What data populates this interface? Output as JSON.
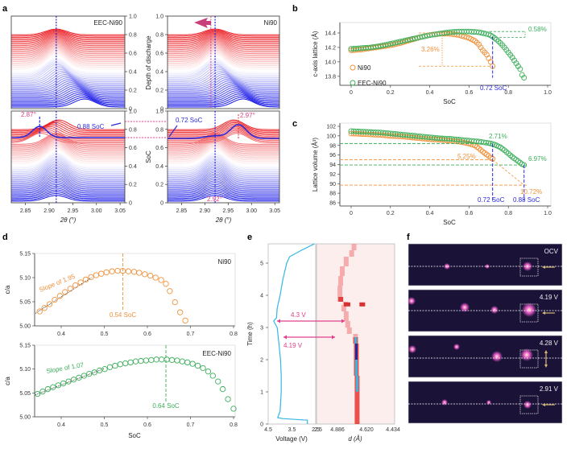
{
  "panel_labels": {
    "a": "a",
    "b": "b",
    "c": "c",
    "d": "d",
    "e": "e",
    "f": "f"
  },
  "colors": {
    "orange": "#f0913a",
    "green": "#3cae5a",
    "blue": "#2a2ad8",
    "magenta": "#e0408a",
    "red": "#e8262a",
    "cyan": "#35b6e6"
  },
  "chart_data": [
    {
      "id": "a",
      "type": "line",
      "title": "",
      "subplots": [
        {
          "name": "EEC-Ni90 discharge",
          "label": "EEC-Ni90",
          "ylabel": "Depth of discharge",
          "yticks": [
            "0",
            "0.2",
            "0.4",
            "0.6",
            "0.8",
            "1.0"
          ],
          "xticks": [
            "2.85",
            "2.90",
            "2.95",
            "3.00",
            "3.05"
          ],
          "xlim": [
            2.82,
            3.06
          ],
          "peak_line": 2.915
        },
        {
          "name": "Ni90 discharge",
          "label": "Ni90",
          "ylabel": "Depth of discharge",
          "yticks": [
            "0",
            "0.2",
            "0.4",
            "0.6",
            "0.8",
            "1.0"
          ],
          "xticks": [
            "2.85",
            "2.90",
            "2.95",
            "3.00",
            "3.05"
          ],
          "xlim": [
            2.82,
            3.06
          ],
          "peak_line": 2.922,
          "shift_line": 2.913
        },
        {
          "name": "EEC-Ni90 charge",
          "ylabel": "SoC",
          "yticks": [
            "0",
            "0.2",
            "0.4",
            "0.6",
            "0.8",
            "1.0"
          ],
          "xticks": [
            "2.85",
            "2.90",
            "2.95",
            "3.00",
            "3.05"
          ],
          "xlim": [
            2.82,
            3.06
          ],
          "xlabel": "2θ (°)",
          "annotations": [
            "2.87°",
            "0.88 SoC"
          ],
          "peak_line": 2.915
        },
        {
          "name": "Ni90 charge",
          "ylabel": "SoC",
          "yticks": [
            "0",
            "0.2",
            "0.4",
            "0.6",
            "0.8",
            "1.0"
          ],
          "xticks": [
            "2.85",
            "2.90",
            "2.95",
            "3.00",
            "3.05"
          ],
          "xlim": [
            2.82,
            3.06
          ],
          "xlabel": "2θ (°)",
          "annotations": [
            "0.72 SoC",
            "2.97°",
            "2.92°"
          ],
          "peak_line": 2.922
        }
      ]
    },
    {
      "id": "b",
      "type": "scatter",
      "xlabel": "SoC",
      "ylabel": "c-axis lattice (Å)",
      "xlim": [
        0,
        1.0
      ],
      "ylim": [
        13.72,
        14.5
      ],
      "xticks": [
        "0",
        "0.2",
        "0.4",
        "0.6",
        "0.8",
        "1.0"
      ],
      "yticks": [
        13.8,
        14.0,
        14.2,
        14.4
      ],
      "ytick_labels": [
        "13.8",
        "14.0",
        "14.2",
        "14.4"
      ],
      "legend": [
        "Ni90",
        "EEC-Ni90"
      ],
      "legend_position": "bottom-left",
      "annotations": {
        "ni90_drop": "3.26%",
        "eec_drop": "0.58%",
        "soc_marker": "0.72 SoC"
      },
      "series": [
        {
          "name": "Ni90",
          "x": [
            0,
            0.05,
            0.1,
            0.15,
            0.2,
            0.25,
            0.3,
            0.35,
            0.4,
            0.45,
            0.5,
            0.55,
            0.6,
            0.63,
            0.65,
            0.67,
            0.69,
            0.7,
            0.71,
            0.72
          ],
          "y": [
            14.16,
            14.17,
            14.19,
            14.21,
            14.23,
            14.26,
            14.3,
            14.34,
            14.37,
            14.39,
            14.39,
            14.37,
            14.33,
            14.29,
            14.24,
            14.16,
            14.1,
            14.05,
            14.0,
            13.94
          ]
        },
        {
          "name": "EEC-Ni90",
          "x": [
            0,
            0.05,
            0.1,
            0.15,
            0.2,
            0.25,
            0.3,
            0.35,
            0.4,
            0.45,
            0.5,
            0.55,
            0.6,
            0.65,
            0.7,
            0.72,
            0.74,
            0.76,
            0.78,
            0.8,
            0.82,
            0.84,
            0.86,
            0.87,
            0.88
          ],
          "y": [
            14.18,
            14.19,
            14.2,
            14.22,
            14.25,
            14.28,
            14.31,
            14.34,
            14.37,
            14.39,
            14.41,
            14.42,
            14.42,
            14.41,
            14.38,
            14.35,
            14.31,
            14.26,
            14.2,
            14.13,
            14.06,
            13.98,
            13.9,
            13.82,
            13.78
          ]
        }
      ]
    },
    {
      "id": "c",
      "type": "scatter",
      "xlabel": "SoC",
      "ylabel": "Lattice volume (Å³)",
      "xlim": [
        0,
        1.0
      ],
      "ylim": [
        86,
        102
      ],
      "xticks": [
        "0",
        "0.2",
        "0.4",
        "0.6",
        "0.8",
        "1.0"
      ],
      "yticks": [
        86,
        88,
        90,
        92,
        94,
        96,
        98,
        100,
        102
      ],
      "ytick_labels": [
        "86",
        "88",
        "90",
        "92",
        "94",
        "96",
        "98",
        "100",
        "102"
      ],
      "annotations": {
        "eec_a": "2.71%",
        "ni90_a": "5.25%",
        "eec_b": "6.97%",
        "ni90_b": "10.72%",
        "soc1": "0.72 SoC",
        "soc2": "0.88 SoC"
      },
      "series": [
        {
          "name": "Ni90",
          "x": [
            0,
            0.05,
            0.1,
            0.15,
            0.2,
            0.25,
            0.3,
            0.35,
            0.4,
            0.45,
            0.5,
            0.55,
            0.6,
            0.63,
            0.65,
            0.67,
            0.69,
            0.7,
            0.71,
            0.72
          ],
          "y": [
            100.5,
            100.4,
            100.3,
            100.2,
            100.0,
            99.9,
            99.7,
            99.5,
            99.3,
            99.2,
            99.0,
            98.8,
            98.4,
            98.0,
            97.4,
            96.7,
            96.1,
            95.8,
            95.4,
            95.2
          ]
        },
        {
          "name": "EEC-Ni90",
          "x": [
            0,
            0.05,
            0.1,
            0.15,
            0.2,
            0.25,
            0.3,
            0.35,
            0.4,
            0.45,
            0.5,
            0.55,
            0.6,
            0.65,
            0.7,
            0.72,
            0.74,
            0.76,
            0.78,
            0.8,
            0.82,
            0.84,
            0.86,
            0.87,
            0.88
          ],
          "y": [
            101.0,
            100.9,
            100.8,
            100.7,
            100.5,
            100.3,
            100.1,
            99.9,
            99.7,
            99.5,
            99.4,
            99.2,
            99.0,
            98.8,
            98.5,
            98.3,
            98.0,
            97.6,
            97.0,
            96.3,
            95.6,
            95.0,
            94.4,
            94.1,
            93.9
          ]
        }
      ]
    },
    {
      "id": "d-top",
      "type": "scatter",
      "label": "Ni90",
      "xlabel": "",
      "ylabel": "c/a",
      "xlim": [
        0.34,
        0.8
      ],
      "ylim": [
        5.0,
        5.15
      ],
      "xticks": [
        0.4,
        0.5,
        0.6,
        0.7,
        0.8
      ],
      "xtick_labels": [
        "0.4",
        "0.5",
        "0.6",
        "0.7",
        "0.8"
      ],
      "yticks": [
        5.0,
        5.05,
        5.1,
        5.15
      ],
      "ytick_labels": [
        "5.00",
        "5.05",
        "5.10",
        "5.15"
      ],
      "annotations": {
        "slope": "Slope of 1.95",
        "peak": "0.54 SoC"
      },
      "peak_x": 0.543,
      "fit": {
        "x": [
          0.34,
          0.47
        ],
        "y": [
          5.026,
          5.1
        ]
      },
      "series": [
        {
          "name": "Ni90",
          "x": [
            0.35,
            0.361,
            0.373,
            0.385,
            0.397,
            0.409,
            0.421,
            0.433,
            0.445,
            0.457,
            0.469,
            0.481,
            0.493,
            0.505,
            0.518,
            0.531,
            0.543,
            0.556,
            0.569,
            0.581,
            0.594,
            0.607,
            0.619,
            0.632,
            0.643,
            0.652,
            0.664,
            0.676,
            0.688
          ],
          "y": [
            5.03,
            5.037,
            5.045,
            5.054,
            5.062,
            5.07,
            5.077,
            5.084,
            5.09,
            5.096,
            5.101,
            5.105,
            5.108,
            5.111,
            5.113,
            5.114,
            5.114,
            5.113,
            5.112,
            5.11,
            5.107,
            5.104,
            5.1,
            5.095,
            5.087,
            5.072,
            5.049,
            5.028,
            5.011
          ]
        }
      ]
    },
    {
      "id": "d-bottom",
      "type": "scatter",
      "label": "EEC-Ni90",
      "xlabel": "SoC",
      "ylabel": "c/a",
      "xlim": [
        0.34,
        0.8
      ],
      "ylim": [
        5.0,
        5.15
      ],
      "xticks": [
        0.4,
        0.5,
        0.6,
        0.7,
        0.8
      ],
      "xtick_labels": [
        "0.4",
        "0.5",
        "0.6",
        "0.7",
        "0.8"
      ],
      "yticks": [
        5.0,
        5.05,
        5.1,
        5.15
      ],
      "ytick_labels": [
        "5.00",
        "5.05",
        "5.10",
        "5.15"
      ],
      "annotations": {
        "slope": "Slope of 1.07",
        "peak": "0.64 SoC"
      },
      "peak_x": 0.643,
      "fit": {
        "x": [
          0.34,
          0.5
        ],
        "y": [
          5.046,
          5.101
        ]
      },
      "series": [
        {
          "name": "EEC-Ni90",
          "x": [
            0.345,
            0.357,
            0.369,
            0.381,
            0.393,
            0.405,
            0.417,
            0.429,
            0.441,
            0.453,
            0.465,
            0.477,
            0.489,
            0.501,
            0.513,
            0.525,
            0.537,
            0.549,
            0.561,
            0.573,
            0.585,
            0.597,
            0.609,
            0.621,
            0.633,
            0.645,
            0.657,
            0.669,
            0.681,
            0.693,
            0.705,
            0.717,
            0.729,
            0.741,
            0.752,
            0.764,
            0.775,
            0.787,
            0.8
          ],
          "y": [
            5.048,
            5.053,
            5.058,
            5.062,
            5.066,
            5.07,
            5.074,
            5.078,
            5.082,
            5.086,
            5.09,
            5.093,
            5.097,
            5.1,
            5.104,
            5.107,
            5.11,
            5.112,
            5.114,
            5.116,
            5.117,
            5.118,
            5.119,
            5.12,
            5.12,
            5.12,
            5.119,
            5.118,
            5.116,
            5.114,
            5.111,
            5.107,
            5.102,
            5.095,
            5.086,
            5.074,
            5.058,
            5.037,
            5.017
          ]
        }
      ]
    },
    {
      "id": "e",
      "type": "heatmap",
      "ylabel": "Time (h)",
      "ylim": [
        0,
        5.6
      ],
      "yticks": [
        0,
        1,
        2,
        3,
        4,
        5
      ],
      "ytick_labels": [
        "0",
        "1",
        "2",
        "3",
        "4",
        "5"
      ],
      "voltage": {
        "xlabel": "Voltage (V)",
        "xticks": [
          "4.5",
          "3.5",
          "2.5"
        ],
        "xlim": [
          4.5,
          2.5
        ],
        "t": [
          0,
          0.05,
          0.12,
          0.17,
          0.2,
          0.4,
          1.0,
          1.5,
          2.0,
          2.5,
          3.0,
          3.2,
          3.3,
          3.6,
          4.0,
          4.5,
          5.0,
          5.2,
          5.4,
          5.6
        ],
        "v": [
          2.85,
          2.85,
          2.85,
          3.9,
          4.1,
          4.0,
          3.95,
          3.95,
          3.98,
          4.05,
          4.12,
          4.27,
          4.15,
          4.12,
          4.0,
          3.88,
          3.72,
          3.6,
          3.1,
          2.55
        ]
      },
      "diffraction": {
        "xlabel": "d (Å)",
        "xticks": [
          "4.886",
          "4.620",
          "4.434"
        ],
        "peak_t": [
          0,
          0.5,
          1,
          1.5,
          2,
          2.5,
          2.7,
          2.8,
          3.0,
          3.2,
          3.5,
          3.7,
          3.8,
          4.0,
          4.3,
          4.6,
          4.9,
          5.2,
          5.4,
          5.6
        ],
        "peak_pos": [
          0.52,
          0.52,
          0.52,
          0.51,
          0.51,
          0.5,
          0.5,
          0.42,
          0.4,
          0.38,
          0.35,
          0.37,
          0.3,
          0.3,
          0.31,
          0.33,
          0.38,
          0.45,
          0.48,
          0.5
        ]
      },
      "annotations": {
        "upper": "4.3 V",
        "lower": "4.19 V"
      }
    }
  ],
  "panel_f": {
    "frames": [
      {
        "label": "OCV",
        "arrow": "left"
      },
      {
        "label": "4.19 V",
        "arrow": "left"
      },
      {
        "label": "4.28 V",
        "arrow": "vertical"
      },
      {
        "label": "2.91 V",
        "arrow": "left"
      }
    ]
  }
}
